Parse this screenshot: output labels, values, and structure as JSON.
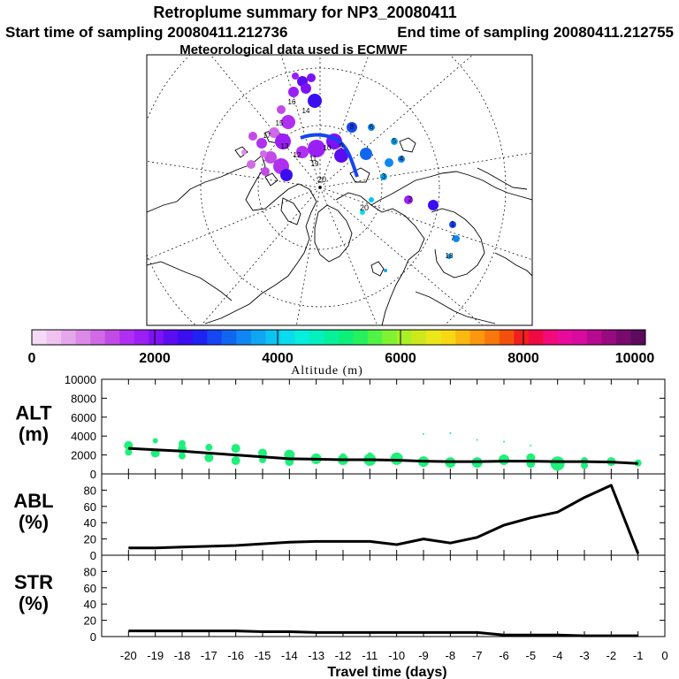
{
  "header": {
    "title": "Retroplume summary for NP3_20080411",
    "start_time": "Start time of sampling 20080411.212736",
    "end_time": "End time of sampling 20080411.212755",
    "met_data": "Meteorological data used is ECMWF"
  },
  "colorbar": {
    "label": "Altitude (m)",
    "ticks": [
      "0",
      "2000",
      "4000",
      "6000",
      "8000",
      "10000"
    ],
    "colors": [
      "#f5d9f5",
      "#efc2f0",
      "#e6a8ec",
      "#dc8ae8",
      "#d06ae6",
      "#c24be6",
      "#b02ff0",
      "#9b1ff5",
      "#7e12f6",
      "#5c0cf0",
      "#3a0ef0",
      "#1e22f2",
      "#1446f2",
      "#1166f0",
      "#0f86f2",
      "#0ea6f2",
      "#0cc3f2",
      "#0adcec",
      "#06eedc",
      "#04f0bf",
      "#06f09c",
      "#0cf07a",
      "#26f05c",
      "#52f244",
      "#80f232",
      "#aaf024",
      "#cfe81c",
      "#eae818",
      "#f8d814",
      "#fab810",
      "#fa980e",
      "#f8780c",
      "#f4500c",
      "#f02020",
      "#f00a44",
      "#f00a7a",
      "#e80a9c",
      "#d80aa0",
      "#b80a90",
      "#980a80",
      "#780a6e",
      "#5c0a5c"
    ]
  },
  "map": {
    "latitude_labels": [
      "20",
      "20"
    ],
    "day_labels": [
      "16",
      "15",
      "17",
      "14",
      "13",
      "12",
      "11",
      "10",
      "9",
      "8",
      "5",
      "4",
      "3",
      "2",
      "1",
      "6",
      "7",
      "18",
      "19"
    ]
  },
  "chart_data": [
    {
      "type": "line",
      "panel": "ALT",
      "ylabel": "ALT (m)",
      "ylabel_lines": [
        "ALT",
        "(m)"
      ],
      "ylim": [
        0,
        10000
      ],
      "yticks": [
        "0",
        "2000",
        "4000",
        "6000",
        "8000",
        "10000"
      ],
      "x": [
        -20,
        -19,
        -18,
        -17,
        -16,
        -15,
        -14,
        -13,
        -12,
        -11,
        -10,
        -9,
        -8,
        -7,
        -6,
        -5,
        -4,
        -3,
        -2,
        -1
      ],
      "values": [
        2700,
        2550,
        2400,
        2200,
        2000,
        1800,
        1600,
        1550,
        1500,
        1500,
        1450,
        1350,
        1300,
        1300,
        1350,
        1350,
        1300,
        1300,
        1250,
        1100
      ],
      "scatter": [
        {
          "x": -20,
          "y": 3000,
          "s": 5
        },
        {
          "x": -20,
          "y": 2300,
          "s": 4
        },
        {
          "x": -19,
          "y": 3500,
          "s": 3
        },
        {
          "x": -19,
          "y": 2200,
          "s": 5
        },
        {
          "x": -18,
          "y": 3200,
          "s": 4
        },
        {
          "x": -18,
          "y": 2600,
          "s": 5
        },
        {
          "x": -18,
          "y": 1900,
          "s": 4
        },
        {
          "x": -17,
          "y": 2800,
          "s": 4
        },
        {
          "x": -17,
          "y": 1700,
          "s": 5
        },
        {
          "x": -16,
          "y": 2700,
          "s": 5
        },
        {
          "x": -16,
          "y": 1400,
          "s": 5
        },
        {
          "x": -15,
          "y": 2200,
          "s": 5
        },
        {
          "x": -15,
          "y": 1500,
          "s": 4
        },
        {
          "x": -14,
          "y": 2000,
          "s": 6
        },
        {
          "x": -14,
          "y": 1300,
          "s": 5
        },
        {
          "x": -13,
          "y": 1600,
          "s": 6
        },
        {
          "x": -13,
          "y": 1400,
          "s": 4
        },
        {
          "x": -12,
          "y": 1500,
          "s": 6
        },
        {
          "x": -12,
          "y": 1800,
          "s": 4
        },
        {
          "x": -11,
          "y": 1500,
          "s": 7
        },
        {
          "x": -11,
          "y": 2000,
          "s": 3
        },
        {
          "x": -10,
          "y": 1600,
          "s": 7
        },
        {
          "x": -9,
          "y": 4200,
          "s": 1
        },
        {
          "x": -9,
          "y": 1300,
          "s": 6
        },
        {
          "x": -8,
          "y": 4300,
          "s": 1
        },
        {
          "x": -8,
          "y": 1200,
          "s": 6
        },
        {
          "x": -7,
          "y": 3600,
          "s": 1
        },
        {
          "x": -7,
          "y": 1200,
          "s": 6
        },
        {
          "x": -6,
          "y": 1500,
          "s": 6
        },
        {
          "x": -6,
          "y": 3400,
          "s": 1
        },
        {
          "x": -5,
          "y": 1700,
          "s": 5
        },
        {
          "x": -5,
          "y": 3000,
          "s": 1
        },
        {
          "x": -5,
          "y": 1100,
          "s": 5
        },
        {
          "x": -4,
          "y": 1100,
          "s": 8
        },
        {
          "x": -4,
          "y": 900,
          "s": 6
        },
        {
          "x": -3,
          "y": 1400,
          "s": 4
        },
        {
          "x": -3,
          "y": 900,
          "s": 4
        },
        {
          "x": -2,
          "y": 1300,
          "s": 5
        },
        {
          "x": -1,
          "y": 1150,
          "s": 4
        }
      ]
    },
    {
      "type": "line",
      "panel": "ABL",
      "ylabel": "ABL (%)",
      "ylabel_lines": [
        "ABL",
        "(%)"
      ],
      "ylim": [
        0,
        100
      ],
      "yticks": [
        "0",
        "20",
        "40",
        "60",
        "80"
      ],
      "x": [
        -20,
        -19,
        -18,
        -17,
        -16,
        -15,
        -14,
        -13,
        -12,
        -11,
        -10,
        -9,
        -8,
        -7,
        -6,
        -5,
        -4,
        -3,
        -2,
        -1
      ],
      "values": [
        9,
        9,
        10,
        11,
        12,
        14,
        16,
        17,
        17,
        17,
        13,
        20,
        15,
        22,
        37,
        46,
        53,
        71,
        86,
        2
      ]
    },
    {
      "type": "line",
      "panel": "STR",
      "ylabel": "STR (%)",
      "ylabel_lines": [
        "STR",
        "(%)"
      ],
      "ylim": [
        0,
        100
      ],
      "yticks": [
        "0",
        "20",
        "40",
        "60",
        "80"
      ],
      "x": [
        -20,
        -19,
        -18,
        -17,
        -16,
        -15,
        -14,
        -13,
        -12,
        -11,
        -10,
        -9,
        -8,
        -7,
        -6,
        -5,
        -4,
        -3,
        -2,
        -1
      ],
      "values": [
        7,
        7,
        7,
        7,
        7,
        6,
        6,
        5,
        5,
        5,
        5,
        5,
        5,
        5,
        2,
        2,
        2,
        1,
        1,
        1
      ]
    }
  ],
  "xaxis": {
    "label": "Travel time (days)",
    "ticks": [
      "-20",
      "-19",
      "-18",
      "-17",
      "-16",
      "-15",
      "-14",
      "-13",
      "-12",
      "-11",
      "-10",
      "-9",
      "-8",
      "-7",
      "-6",
      "-5",
      "-4",
      "-3",
      "-2",
      "-1",
      "0"
    ]
  }
}
